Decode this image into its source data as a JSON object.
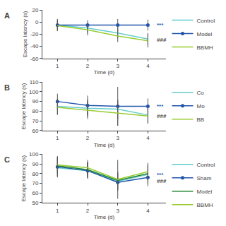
{
  "chart_data": [
    {
      "type": "line",
      "title": "A",
      "xlabel": "Time (d)",
      "ylabel": "Escape latency (s)",
      "x": [
        1,
        2,
        3,
        4
      ],
      "xlim": [
        0.5,
        4.6
      ],
      "xticks": [
        1,
        2,
        3,
        4
      ],
      "ylim": [
        -60,
        20
      ],
      "yticks": [
        -60,
        -40,
        -20,
        0,
        20
      ],
      "grid": false,
      "legend": "right",
      "series": [
        {
          "name": "Control",
          "color": "#66cccc",
          "line_style": "solid",
          "marker": "none",
          "values": [
            -5,
            -10,
            -18,
            -28
          ],
          "yerr": [
            9,
            8,
            9,
            10
          ]
        },
        {
          "name": "Model",
          "color": "#2255aa",
          "line_style": "solid",
          "marker": "circle",
          "values": [
            -5,
            -5,
            -5,
            -5
          ],
          "yerr": [
            10,
            8,
            10,
            9
          ]
        },
        {
          "name": "BBMH",
          "color": "#99cc33",
          "line_style": "solid",
          "marker": "none",
          "values": [
            -6,
            -13,
            -23,
            -31
          ],
          "yerr": [
            8,
            9,
            10,
            11
          ]
        }
      ],
      "annotations": [
        {
          "text": "***",
          "x": 4.25,
          "y": -5,
          "color": "#2255aa"
        },
        {
          "text": "###",
          "x": 4.25,
          "y": -30,
          "color": "#444444"
        }
      ]
    },
    {
      "type": "line",
      "title": "B",
      "xlabel": "Time (d)",
      "ylabel": "Escape latency (s)",
      "x": [
        1,
        2,
        3,
        4
      ],
      "xlim": [
        0.5,
        4.6
      ],
      "xticks": [
        1,
        2,
        3,
        4
      ],
      "ylim": [
        60,
        110
      ],
      "yticks": [
        60,
        70,
        80,
        90,
        100,
        110
      ],
      "grid": false,
      "legend": "right",
      "series": [
        {
          "name": "Co",
          "color": "#66cccc",
          "line_style": "solid",
          "marker": "none",
          "values": [
            85,
            83,
            82,
            76
          ],
          "yerr": [
            8,
            9,
            10,
            8
          ]
        },
        {
          "name": "Mo",
          "color": "#2255aa",
          "line_style": "solid",
          "marker": "circle",
          "values": [
            90,
            86,
            85,
            85
          ],
          "yerr": [
            8,
            10,
            20,
            8
          ]
        },
        {
          "name": "BB",
          "color": "#99cc33",
          "line_style": "solid",
          "marker": "none",
          "values": [
            84,
            81,
            78,
            75
          ],
          "yerr": [
            8,
            9,
            13,
            8
          ]
        }
      ],
      "annotations": [
        {
          "text": "***",
          "x": 4.25,
          "y": 85,
          "color": "#2255aa"
        },
        {
          "text": "###",
          "x": 4.25,
          "y": 75,
          "color": "#444444"
        }
      ]
    },
    {
      "type": "line",
      "title": "C",
      "xlabel": "Time (d)",
      "ylabel": "Escape latency (s)",
      "x": [
        1,
        2,
        3,
        4
      ],
      "xlim": [
        0.5,
        4.6
      ],
      "xticks": [
        1,
        2,
        3,
        4
      ],
      "ylim": [
        50,
        100
      ],
      "yticks": [
        50,
        60,
        70,
        80,
        90,
        100
      ],
      "grid": false,
      "legend": "right",
      "series": [
        {
          "name": "Control",
          "color": "#66cccc",
          "line_style": "solid",
          "marker": "none",
          "values": [
            86,
            83,
            72,
            79
          ],
          "yerr": [
            10,
            8,
            9,
            9
          ]
        },
        {
          "name": "Sham",
          "color": "#2255aa",
          "line_style": "solid",
          "marker": "circle",
          "values": [
            87,
            83,
            71,
            76
          ],
          "yerr": [
            10,
            8,
            9,
            9
          ]
        },
        {
          "name": "Model",
          "color": "#228833",
          "line_style": "solid",
          "marker": "none",
          "values": [
            88,
            84,
            73,
            80
          ],
          "yerr": [
            10,
            8,
            9,
            9
          ]
        },
        {
          "name": "BBMH",
          "color": "#99cc33",
          "line_style": "solid",
          "marker": "none",
          "values": [
            89,
            86,
            74,
            82
          ],
          "yerr": [
            8,
            8,
            20,
            9
          ]
        }
      ],
      "annotations": [
        {
          "text": "***",
          "x": 4.25,
          "y": 79,
          "color": "#2255aa"
        },
        {
          "text": "###",
          "x": 4.25,
          "y": 72,
          "color": "#444444"
        }
      ]
    }
  ]
}
